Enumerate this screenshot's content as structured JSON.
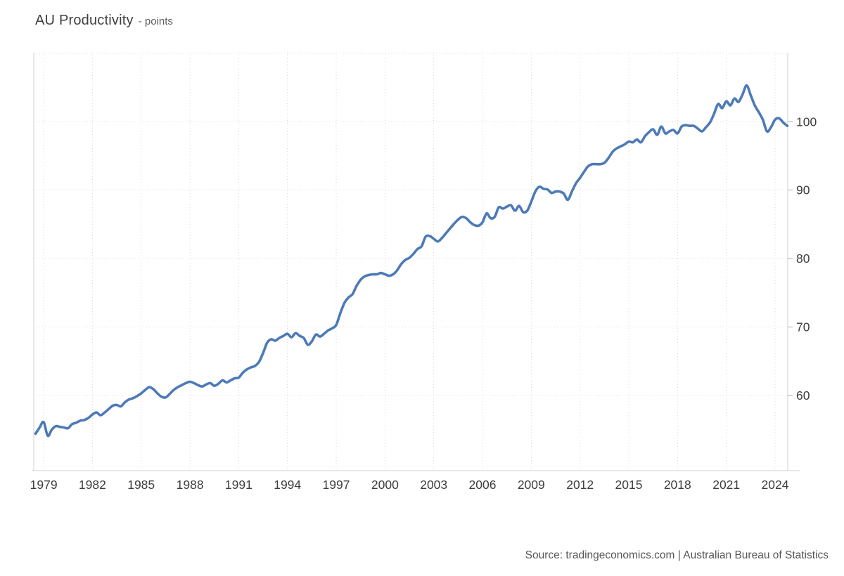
{
  "header": {
    "title": "AU Productivity",
    "subtitle": "- points"
  },
  "footer": {
    "source": "Source: tradingeconomics.com | Australian Bureau of Statistics"
  },
  "chart_data": {
    "type": "line",
    "title": "AU Productivity",
    "ylabel": "points",
    "xlabel": "",
    "grid": "dotted",
    "legend_position": "none",
    "line_color": "#4d7ab7",
    "x_range": [
      1978.39,
      2024.78
    ],
    "y_range": [
      49.0,
      110.1
    ],
    "x_tick_years": [
      1979,
      1982,
      1985,
      1988,
      1991,
      1994,
      1997,
      2000,
      2003,
      2006,
      2009,
      2012,
      2015,
      2018,
      2021,
      2024
    ],
    "y_tick_values": [
      60,
      70,
      80,
      90,
      100
    ],
    "y_gridline_values": [
      60,
      70,
      80,
      90,
      100,
      110
    ],
    "series": [
      {
        "name": "AU Productivity",
        "unit": "points",
        "points": [
          [
            1978.5,
            54.4
          ],
          [
            1978.75,
            55.3
          ],
          [
            1979,
            56.1
          ],
          [
            1979.25,
            54.1
          ],
          [
            1979.5,
            55.0
          ],
          [
            1979.75,
            55.5
          ],
          [
            1980,
            55.4
          ],
          [
            1980.25,
            55.3
          ],
          [
            1980.5,
            55.2
          ],
          [
            1980.75,
            55.8
          ],
          [
            1981,
            56.0
          ],
          [
            1981.25,
            56.3
          ],
          [
            1981.5,
            56.4
          ],
          [
            1981.75,
            56.7
          ],
          [
            1982,
            57.2
          ],
          [
            1982.25,
            57.5
          ],
          [
            1982.5,
            57.1
          ],
          [
            1982.75,
            57.5
          ],
          [
            1983,
            58.0
          ],
          [
            1983.25,
            58.5
          ],
          [
            1983.5,
            58.6
          ],
          [
            1983.75,
            58.4
          ],
          [
            1984,
            59.0
          ],
          [
            1984.25,
            59.4
          ],
          [
            1984.5,
            59.6
          ],
          [
            1984.75,
            59.9
          ],
          [
            1985,
            60.3
          ],
          [
            1985.25,
            60.8
          ],
          [
            1985.5,
            61.2
          ],
          [
            1985.75,
            60.9
          ],
          [
            1986,
            60.3
          ],
          [
            1986.25,
            59.8
          ],
          [
            1986.5,
            59.7
          ],
          [
            1986.75,
            60.2
          ],
          [
            1987,
            60.8
          ],
          [
            1987.25,
            61.2
          ],
          [
            1987.5,
            61.5
          ],
          [
            1987.75,
            61.8
          ],
          [
            1988,
            62.0
          ],
          [
            1988.25,
            61.8
          ],
          [
            1988.5,
            61.5
          ],
          [
            1988.75,
            61.3
          ],
          [
            1989,
            61.6
          ],
          [
            1989.25,
            61.8
          ],
          [
            1989.5,
            61.4
          ],
          [
            1989.75,
            61.7
          ],
          [
            1990,
            62.2
          ],
          [
            1990.25,
            61.9
          ],
          [
            1990.5,
            62.2
          ],
          [
            1990.75,
            62.5
          ],
          [
            1991,
            62.6
          ],
          [
            1991.25,
            63.3
          ],
          [
            1991.5,
            63.8
          ],
          [
            1991.75,
            64.1
          ],
          [
            1992,
            64.3
          ],
          [
            1992.25,
            64.9
          ],
          [
            1992.5,
            66.2
          ],
          [
            1992.75,
            67.7
          ],
          [
            1993,
            68.2
          ],
          [
            1993.25,
            68.0
          ],
          [
            1993.5,
            68.4
          ],
          [
            1993.75,
            68.7
          ],
          [
            1994,
            69.0
          ],
          [
            1994.25,
            68.5
          ],
          [
            1994.5,
            69.1
          ],
          [
            1994.75,
            68.7
          ],
          [
            1995,
            68.4
          ],
          [
            1995.25,
            67.4
          ],
          [
            1995.5,
            67.9
          ],
          [
            1995.75,
            68.9
          ],
          [
            1996,
            68.6
          ],
          [
            1996.25,
            69.0
          ],
          [
            1996.5,
            69.5
          ],
          [
            1996.75,
            69.8
          ],
          [
            1997,
            70.3
          ],
          [
            1997.25,
            72.0
          ],
          [
            1997.5,
            73.5
          ],
          [
            1997.75,
            74.3
          ],
          [
            1998,
            74.8
          ],
          [
            1998.25,
            76.0
          ],
          [
            1998.5,
            76.9
          ],
          [
            1998.75,
            77.4
          ],
          [
            1999,
            77.6
          ],
          [
            1999.25,
            77.7
          ],
          [
            1999.5,
            77.7
          ],
          [
            1999.75,
            77.9
          ],
          [
            2000,
            77.7
          ],
          [
            2000.25,
            77.5
          ],
          [
            2000.5,
            77.7
          ],
          [
            2000.75,
            78.3
          ],
          [
            2001,
            79.2
          ],
          [
            2001.25,
            79.8
          ],
          [
            2001.5,
            80.1
          ],
          [
            2001.75,
            80.7
          ],
          [
            2002,
            81.4
          ],
          [
            2002.25,
            81.8
          ],
          [
            2002.5,
            83.2
          ],
          [
            2002.75,
            83.3
          ],
          [
            2003,
            82.9
          ],
          [
            2003.25,
            82.5
          ],
          [
            2003.5,
            83.0
          ],
          [
            2003.75,
            83.7
          ],
          [
            2004,
            84.4
          ],
          [
            2004.25,
            85.1
          ],
          [
            2004.5,
            85.7
          ],
          [
            2004.75,
            86.1
          ],
          [
            2005,
            85.9
          ],
          [
            2005.25,
            85.3
          ],
          [
            2005.5,
            84.9
          ],
          [
            2005.75,
            84.8
          ],
          [
            2006,
            85.3
          ],
          [
            2006.25,
            86.6
          ],
          [
            2006.5,
            85.9
          ],
          [
            2006.75,
            86.1
          ],
          [
            2007,
            87.5
          ],
          [
            2007.25,
            87.3
          ],
          [
            2007.5,
            87.6
          ],
          [
            2007.75,
            87.8
          ],
          [
            2008,
            87.0
          ],
          [
            2008.25,
            87.7
          ],
          [
            2008.5,
            86.8
          ],
          [
            2008.75,
            87.0
          ],
          [
            2009,
            88.3
          ],
          [
            2009.25,
            89.8
          ],
          [
            2009.5,
            90.5
          ],
          [
            2009.75,
            90.2
          ],
          [
            2010,
            90.1
          ],
          [
            2010.25,
            89.6
          ],
          [
            2010.5,
            89.8
          ],
          [
            2010.75,
            89.8
          ],
          [
            2011,
            89.5
          ],
          [
            2011.25,
            88.6
          ],
          [
            2011.5,
            89.8
          ],
          [
            2011.75,
            91.0
          ],
          [
            2012,
            91.8
          ],
          [
            2012.25,
            92.7
          ],
          [
            2012.5,
            93.5
          ],
          [
            2012.75,
            93.8
          ],
          [
            2013,
            93.8
          ],
          [
            2013.25,
            93.8
          ],
          [
            2013.5,
            94.0
          ],
          [
            2013.75,
            94.7
          ],
          [
            2014,
            95.6
          ],
          [
            2014.25,
            96.1
          ],
          [
            2014.5,
            96.4
          ],
          [
            2014.75,
            96.7
          ],
          [
            2015,
            97.1
          ],
          [
            2015.25,
            97.0
          ],
          [
            2015.5,
            97.4
          ],
          [
            2015.75,
            97.0
          ],
          [
            2016,
            97.9
          ],
          [
            2016.25,
            98.5
          ],
          [
            2016.5,
            98.9
          ],
          [
            2016.75,
            98.1
          ],
          [
            2017,
            99.3
          ],
          [
            2017.25,
            98.3
          ],
          [
            2017.5,
            98.6
          ],
          [
            2017.75,
            98.8
          ],
          [
            2018,
            98.3
          ],
          [
            2018.25,
            99.3
          ],
          [
            2018.5,
            99.5
          ],
          [
            2018.75,
            99.4
          ],
          [
            2019,
            99.4
          ],
          [
            2019.25,
            99.0
          ],
          [
            2019.5,
            98.6
          ],
          [
            2019.75,
            99.2
          ],
          [
            2020,
            99.9
          ],
          [
            2020.25,
            101.2
          ],
          [
            2020.5,
            102.6
          ],
          [
            2020.75,
            102.0
          ],
          [
            2021,
            103.0
          ],
          [
            2021.25,
            102.4
          ],
          [
            2021.5,
            103.4
          ],
          [
            2021.75,
            102.9
          ],
          [
            2022,
            104.0
          ],
          [
            2022.25,
            105.3
          ],
          [
            2022.5,
            103.9
          ],
          [
            2022.75,
            102.4
          ],
          [
            2023,
            101.4
          ],
          [
            2023.25,
            100.3
          ],
          [
            2023.5,
            98.6
          ],
          [
            2023.75,
            99.2
          ],
          [
            2024,
            100.3
          ],
          [
            2024.25,
            100.5
          ],
          [
            2024.5,
            99.9
          ],
          [
            2024.75,
            99.4
          ]
        ]
      }
    ],
    "source": "Source: tradingeconomics.com | Australian Bureau of Statistics"
  }
}
